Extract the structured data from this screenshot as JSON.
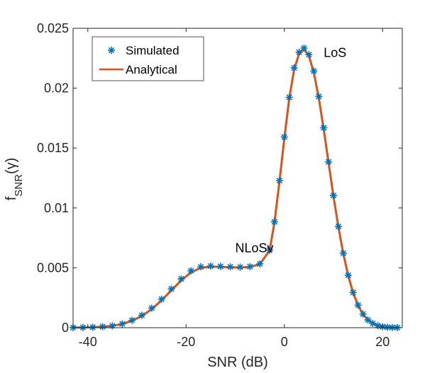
{
  "chart_data": {
    "type": "line",
    "title": "",
    "xlabel": "SNR (dB)",
    "ylabel": "f_SNR(γ)",
    "ylabel_main": "f",
    "ylabel_sub": "SNR",
    "ylabel_arg": "(γ)",
    "xlim": [
      -43,
      24
    ],
    "ylim": [
      0,
      0.025
    ],
    "xticks": [
      -40,
      -20,
      0,
      20
    ],
    "xtick_labels": [
      "-40",
      "-20",
      "0",
      "20"
    ],
    "yticks": [
      0,
      0.005,
      0.01,
      0.015,
      0.02,
      0.025
    ],
    "ytick_labels": [
      "0",
      "0.005",
      "0.01",
      "0.015",
      "0.02",
      "0.025"
    ],
    "grid": false,
    "legend_position": "top-left",
    "colors": {
      "simulated": "#0072BD",
      "analytical": "#D95319",
      "axis": "#262626"
    },
    "series": [
      {
        "name": "Simulated",
        "style": "markers",
        "marker": "asterisk",
        "x": [
          -43,
          -41,
          -39,
          -37,
          -35,
          -33,
          -31,
          -29,
          -27,
          -25,
          -23,
          -21,
          -19,
          -17,
          -15,
          -13,
          -11,
          -9,
          -7,
          -5,
          -3,
          -2,
          -1,
          0,
          1,
          2,
          3,
          4,
          5,
          6,
          7,
          8,
          9,
          10,
          11,
          12,
          13,
          14,
          15,
          16,
          17,
          18,
          19,
          20,
          21,
          22,
          23
        ],
        "values": [
          1e-05,
          2e-05,
          4e-05,
          8e-05,
          0.00016,
          0.00032,
          0.00062,
          0.00104,
          0.00163,
          0.00238,
          0.00324,
          0.00407,
          0.00475,
          0.00508,
          0.00515,
          0.00512,
          0.00508,
          0.00506,
          0.0051,
          0.00533,
          0.00647,
          0.00884,
          0.01228,
          0.01592,
          0.01924,
          0.0217,
          0.023,
          0.02335,
          0.0228,
          0.02143,
          0.01931,
          0.01669,
          0.01385,
          0.01104,
          0.00846,
          0.00622,
          0.00438,
          0.00294,
          0.00188,
          0.00114,
          0.00065,
          0.00036,
          0.00018,
          8e-05,
          4e-05,
          2e-05,
          1e-05
        ]
      },
      {
        "name": "Analytical",
        "style": "line",
        "x": [
          -43,
          -41,
          -39,
          -37,
          -35,
          -33,
          -31,
          -29,
          -27,
          -25,
          -23,
          -21,
          -19,
          -17,
          -15,
          -13,
          -11,
          -9,
          -7,
          -5,
          -3,
          -2,
          -1,
          0,
          1,
          2,
          3,
          4,
          5,
          6,
          7,
          8,
          9,
          10,
          11,
          12,
          13,
          14,
          15,
          16,
          17,
          18,
          19,
          20,
          21,
          22,
          23
        ],
        "values": [
          1e-05,
          2e-05,
          4e-05,
          8e-05,
          0.00016,
          0.00031,
          0.00058,
          0.00098,
          0.00155,
          0.00228,
          0.00312,
          0.00395,
          0.00462,
          0.005,
          0.0051,
          0.00508,
          0.00505,
          0.00503,
          0.00507,
          0.0053,
          0.00645,
          0.0088,
          0.0122,
          0.01583,
          0.01914,
          0.02158,
          0.02287,
          0.02325,
          0.0227,
          0.02132,
          0.0192,
          0.0166,
          0.01378,
          0.01098,
          0.0084,
          0.00618,
          0.00435,
          0.00292,
          0.00186,
          0.00113,
          0.00065,
          0.00036,
          0.00018,
          8e-05,
          4e-05,
          2e-05,
          1e-05
        ]
      }
    ],
    "annotations": [
      {
        "text": "LoS",
        "x": 8,
        "y": 0.0226
      },
      {
        "text": "NLoSv",
        "x": -10,
        "y": 0.0063
      }
    ]
  }
}
